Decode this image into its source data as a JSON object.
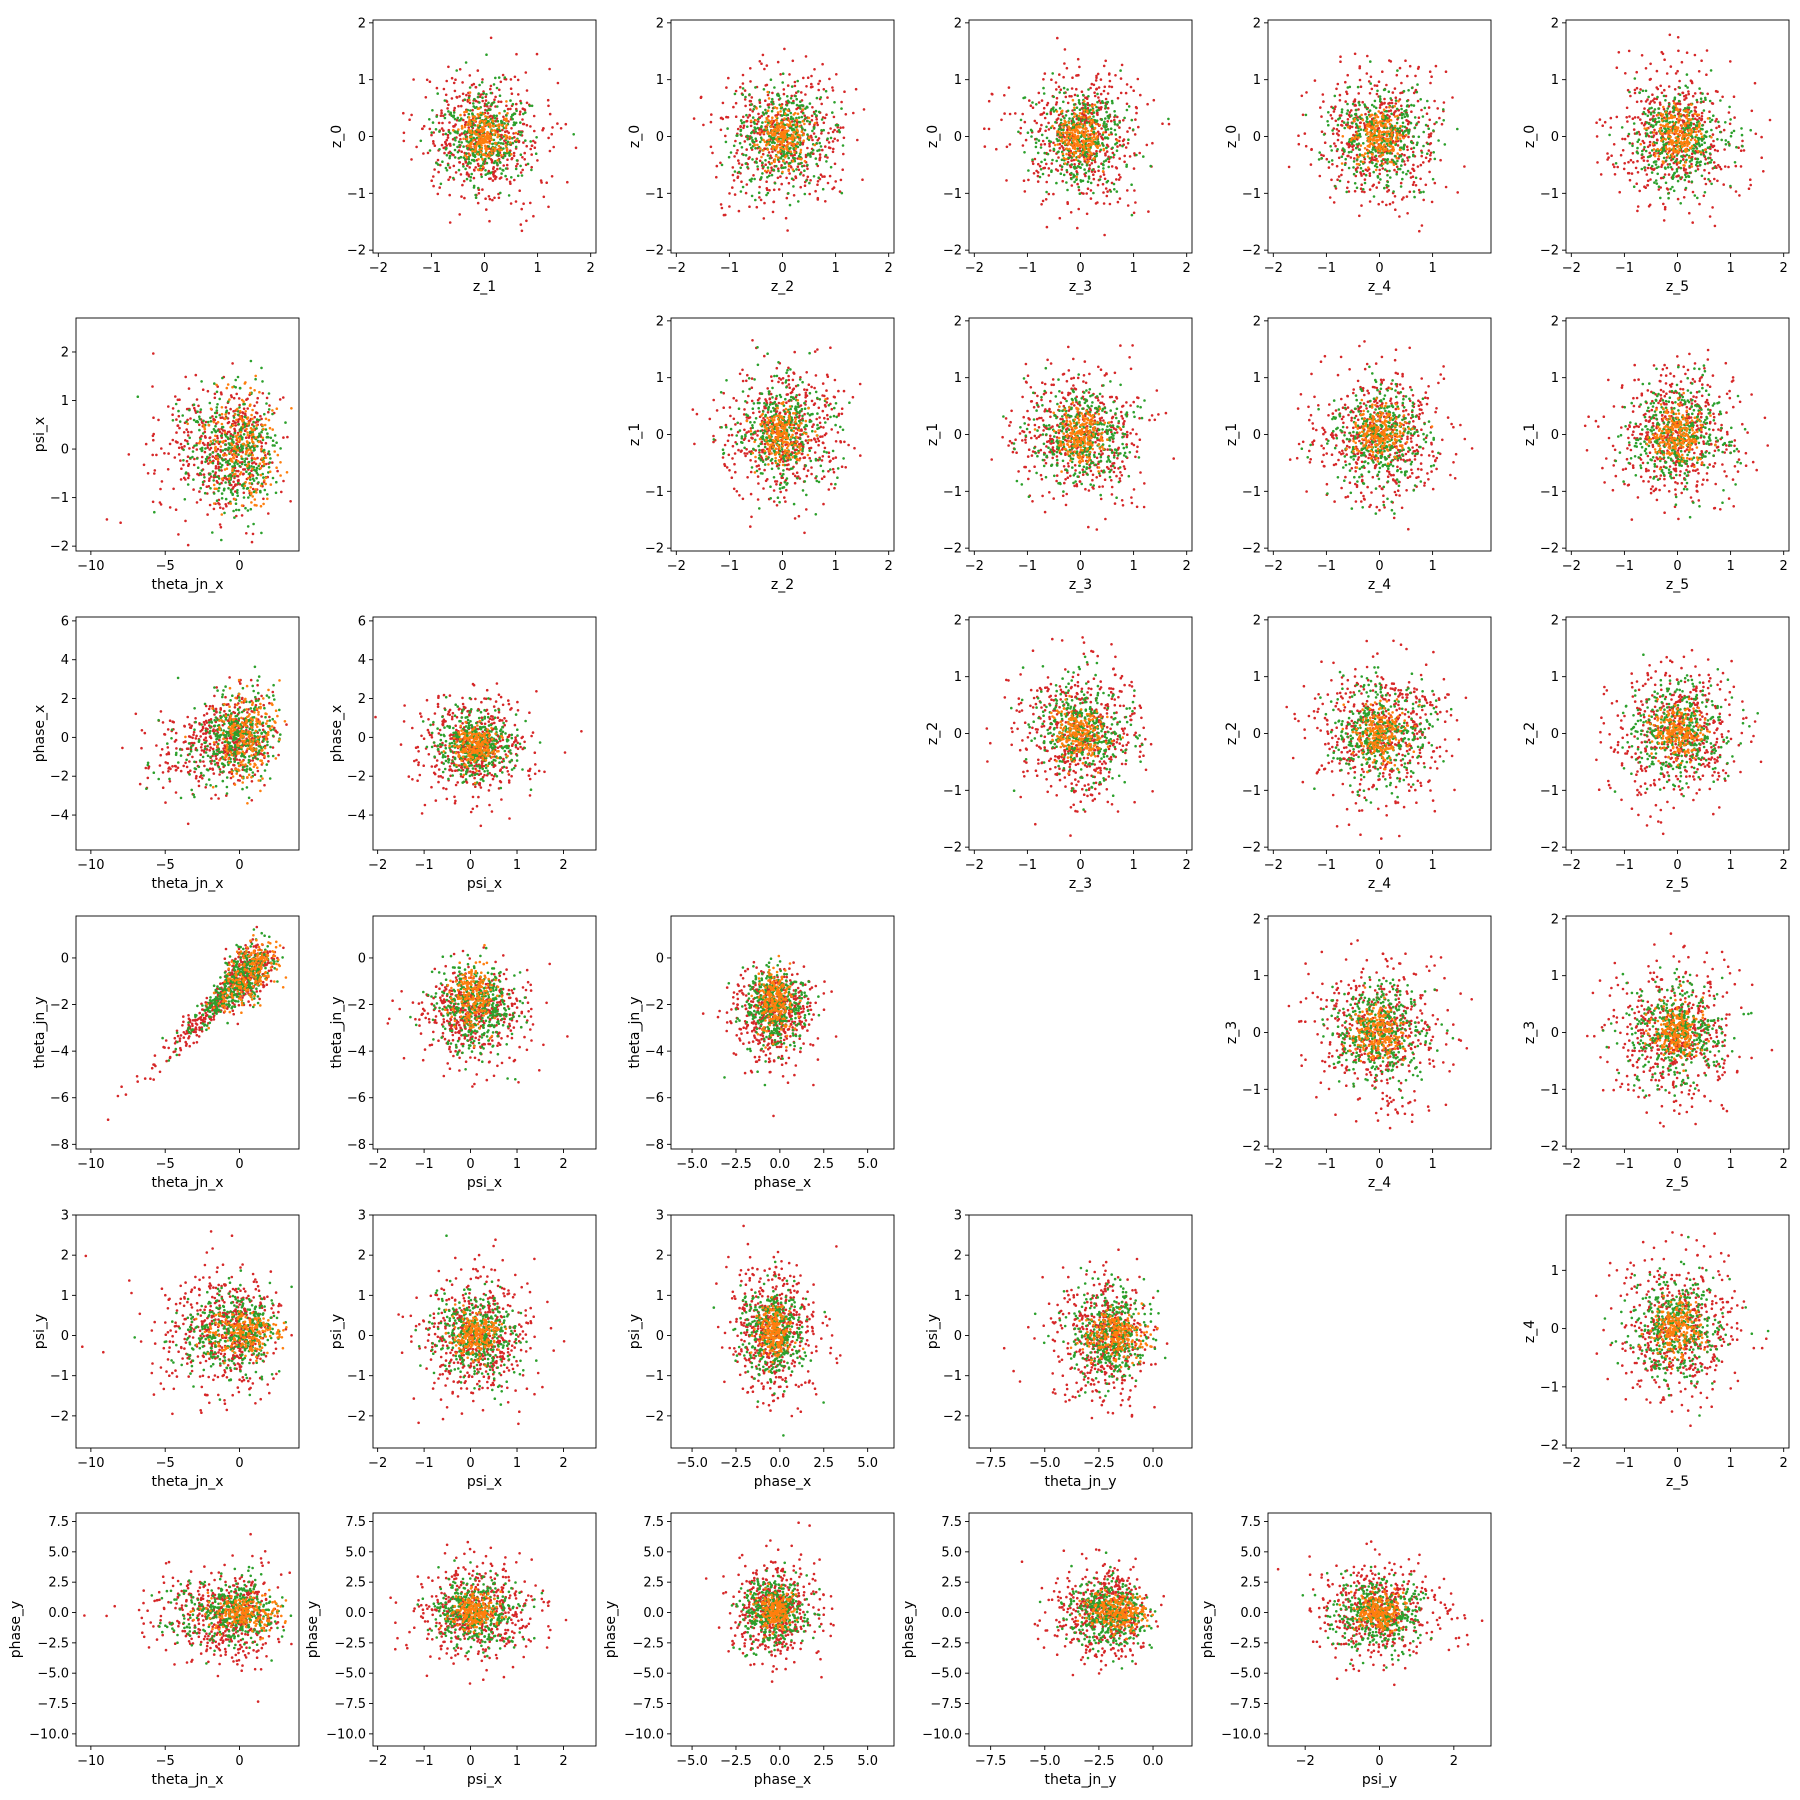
{
  "figure": {
    "title": ""
  },
  "colors": {
    "a": "#2ca02c",
    "b": "#ff7f0e",
    "c": "#d62728"
  },
  "chart_data": [
    {
      "type": "scatter",
      "row": 0,
      "col": 1,
      "xlabel": "z_1",
      "ylabel": "z_0",
      "xlim": [
        -2.1,
        2.1
      ],
      "ylim": [
        -2.05,
        2.05
      ],
      "xticks": [
        -2,
        -1,
        0,
        1,
        2
      ],
      "yticks": [
        -2,
        -1,
        0,
        1,
        2
      ],
      "points": "blob"
    },
    {
      "type": "scatter",
      "row": 0,
      "col": 2,
      "xlabel": "z_2",
      "ylabel": "z_0",
      "xlim": [
        -2.1,
        2.1
      ],
      "ylim": [
        -2.05,
        2.05
      ],
      "xticks": [
        -2,
        -1,
        0,
        1,
        2
      ],
      "yticks": [
        -2,
        -1,
        0,
        1,
        2
      ],
      "points": "blob"
    },
    {
      "type": "scatter",
      "row": 0,
      "col": 3,
      "xlabel": "z_3",
      "ylabel": "z_0",
      "xlim": [
        -2.1,
        2.1
      ],
      "ylim": [
        -2.05,
        2.05
      ],
      "xticks": [
        -2,
        -1,
        0,
        1,
        2
      ],
      "yticks": [
        -2,
        -1,
        0,
        1,
        2
      ],
      "points": "blob"
    },
    {
      "type": "scatter",
      "row": 0,
      "col": 4,
      "xlabel": "z_4",
      "ylabel": "z_0",
      "xlim": [
        -2.1,
        2.1
      ],
      "ylim": [
        -2.05,
        2.05
      ],
      "xticks": [
        -2,
        -1,
        0,
        1
      ],
      "yticks": [
        -2,
        -1,
        0,
        1,
        2
      ],
      "points": "blob"
    },
    {
      "type": "scatter",
      "row": 0,
      "col": 5,
      "xlabel": "z_5",
      "ylabel": "z_0",
      "xlim": [
        -2.1,
        2.1
      ],
      "ylim": [
        -2.05,
        2.05
      ],
      "xticks": [
        -2,
        -1,
        0,
        1,
        2
      ],
      "yticks": [
        -2,
        -1,
        0,
        1,
        2
      ],
      "points": "blob"
    },
    {
      "type": "scatter",
      "row": 1,
      "col": 0,
      "xlabel": "theta_jn_x",
      "ylabel": "psi_x",
      "xlim": [
        -11,
        4
      ],
      "ylim": [
        -2.1,
        2.7
      ],
      "xticks": [
        -10,
        -5,
        0
      ],
      "yticks": [
        -2,
        -1,
        0,
        1,
        2
      ],
      "points": "theta_psi"
    },
    {
      "type": "scatter",
      "row": 1,
      "col": 2,
      "xlabel": "z_2",
      "ylabel": "z_1",
      "xlim": [
        -2.1,
        2.1
      ],
      "ylim": [
        -2.05,
        2.05
      ],
      "xticks": [
        -2,
        -1,
        0,
        1,
        2
      ],
      "yticks": [
        -2,
        -1,
        0,
        1,
        2
      ],
      "points": "blob"
    },
    {
      "type": "scatter",
      "row": 1,
      "col": 3,
      "xlabel": "z_3",
      "ylabel": "z_1",
      "xlim": [
        -2.1,
        2.1
      ],
      "ylim": [
        -2.05,
        2.05
      ],
      "xticks": [
        -2,
        -1,
        0,
        1,
        2
      ],
      "yticks": [
        -2,
        -1,
        0,
        1,
        2
      ],
      "points": "blob"
    },
    {
      "type": "scatter",
      "row": 1,
      "col": 4,
      "xlabel": "z_4",
      "ylabel": "z_1",
      "xlim": [
        -2.1,
        2.1
      ],
      "ylim": [
        -2.05,
        2.05
      ],
      "xticks": [
        -2,
        -1,
        0,
        1
      ],
      "yticks": [
        -2,
        -1,
        0,
        1,
        2
      ],
      "points": "blob"
    },
    {
      "type": "scatter",
      "row": 1,
      "col": 5,
      "xlabel": "z_5",
      "ylabel": "z_1",
      "xlim": [
        -2.1,
        2.1
      ],
      "ylim": [
        -2.05,
        2.05
      ],
      "xticks": [
        -2,
        -1,
        0,
        1,
        2
      ],
      "yticks": [
        -2,
        -1,
        0,
        1,
        2
      ],
      "points": "blob"
    },
    {
      "type": "scatter",
      "row": 2,
      "col": 0,
      "xlabel": "theta_jn_x",
      "ylabel": "phase_x",
      "xlim": [
        -11,
        4
      ],
      "ylim": [
        -5.8,
        6.2
      ],
      "xticks": [
        -10,
        -5,
        0
      ],
      "yticks": [
        -4,
        -2,
        0,
        2,
        4,
        6
      ],
      "points": "theta_phase"
    },
    {
      "type": "scatter",
      "row": 2,
      "col": 1,
      "xlabel": "psi_x",
      "ylabel": "phase_x",
      "xlim": [
        -2.1,
        2.7
      ],
      "ylim": [
        -5.8,
        6.2
      ],
      "xticks": [
        -2,
        -1,
        0,
        1,
        2
      ],
      "yticks": [
        -4,
        -2,
        0,
        2,
        4,
        6
      ],
      "points": "psi_phase"
    },
    {
      "type": "scatter",
      "row": 2,
      "col": 3,
      "xlabel": "z_3",
      "ylabel": "z_2",
      "xlim": [
        -2.1,
        2.1
      ],
      "ylim": [
        -2.05,
        2.05
      ],
      "xticks": [
        -2,
        -1,
        0,
        1,
        2
      ],
      "yticks": [
        -2,
        -1,
        0,
        1,
        2
      ],
      "points": "blob"
    },
    {
      "type": "scatter",
      "row": 2,
      "col": 4,
      "xlabel": "z_4",
      "ylabel": "z_2",
      "xlim": [
        -2.1,
        2.1
      ],
      "ylim": [
        -2.05,
        2.05
      ],
      "xticks": [
        -2,
        -1,
        0,
        1
      ],
      "yticks": [
        -2,
        -1,
        0,
        1,
        2
      ],
      "points": "blob"
    },
    {
      "type": "scatter",
      "row": 2,
      "col": 5,
      "xlabel": "z_5",
      "ylabel": "z_2",
      "xlim": [
        -2.1,
        2.1
      ],
      "ylim": [
        -2.05,
        2.05
      ],
      "xticks": [
        -2,
        -1,
        0,
        1,
        2
      ],
      "yticks": [
        -2,
        -1,
        0,
        1,
        2
      ],
      "points": "blob"
    },
    {
      "type": "scatter",
      "row": 3,
      "col": 0,
      "xlabel": "theta_jn_x",
      "ylabel": "theta_jn_y",
      "xlim": [
        -11,
        4
      ],
      "ylim": [
        -8.2,
        1.8
      ],
      "xticks": [
        -10,
        -5,
        0
      ],
      "yticks": [
        -8,
        -6,
        -4,
        -2,
        0
      ],
      "points": "theta_theta"
    },
    {
      "type": "scatter",
      "row": 3,
      "col": 1,
      "xlabel": "psi_x",
      "ylabel": "theta_jn_y",
      "xlim": [
        -2.1,
        2.7
      ],
      "ylim": [
        -8.2,
        1.8
      ],
      "xticks": [
        -2,
        -1,
        0,
        1,
        2
      ],
      "yticks": [
        -8,
        -6,
        -4,
        -2,
        0
      ],
      "points": "psi_thetay"
    },
    {
      "type": "scatter",
      "row": 3,
      "col": 2,
      "xlabel": "phase_x",
      "ylabel": "theta_jn_y",
      "xlim": [
        -6.2,
        6.5
      ],
      "ylim": [
        -8.2,
        1.8
      ],
      "xticks": [
        -5.0,
        -2.5,
        0.0,
        2.5,
        5.0
      ],
      "yticks": [
        -8,
        -6,
        -4,
        -2,
        0
      ],
      "points": "phase_thetay"
    },
    {
      "type": "scatter",
      "row": 3,
      "col": 4,
      "xlabel": "z_4",
      "ylabel": "z_3",
      "xlim": [
        -2.1,
        2.1
      ],
      "ylim": [
        -2.05,
        2.05
      ],
      "xticks": [
        -2,
        -1,
        0,
        1
      ],
      "yticks": [
        -2,
        -1,
        0,
        1,
        2
      ],
      "points": "blob"
    },
    {
      "type": "scatter",
      "row": 3,
      "col": 5,
      "xlabel": "z_5",
      "ylabel": "z_3",
      "xlim": [
        -2.1,
        2.1
      ],
      "ylim": [
        -2.05,
        2.05
      ],
      "xticks": [
        -2,
        -1,
        0,
        1,
        2
      ],
      "yticks": [
        -2,
        -1,
        0,
        1,
        2
      ],
      "points": "blob"
    },
    {
      "type": "scatter",
      "row": 4,
      "col": 0,
      "xlabel": "theta_jn_x",
      "ylabel": "psi_y",
      "xlim": [
        -11,
        4
      ],
      "ylim": [
        -2.8,
        3.0
      ],
      "xticks": [
        -10,
        -5,
        0
      ],
      "yticks": [
        -2,
        -1,
        0,
        1,
        2,
        3
      ],
      "points": "theta_psiy"
    },
    {
      "type": "scatter",
      "row": 4,
      "col": 1,
      "xlabel": "psi_x",
      "ylabel": "psi_y",
      "xlim": [
        -2.1,
        2.7
      ],
      "ylim": [
        -2.8,
        3.0
      ],
      "xticks": [
        -2,
        -1,
        0,
        1,
        2
      ],
      "yticks": [
        -2,
        -1,
        0,
        1,
        2,
        3
      ],
      "points": "psi_psiy"
    },
    {
      "type": "scatter",
      "row": 4,
      "col": 2,
      "xlabel": "phase_x",
      "ylabel": "psi_y",
      "xlim": [
        -6.2,
        6.5
      ],
      "ylim": [
        -2.8,
        3.0
      ],
      "xticks": [
        -5.0,
        -2.5,
        0.0,
        2.5,
        5.0
      ],
      "yticks": [
        -2,
        -1,
        0,
        1,
        2,
        3
      ],
      "points": "phase_psiy"
    },
    {
      "type": "scatter",
      "row": 4,
      "col": 3,
      "xlabel": "theta_jn_y",
      "ylabel": "psi_y",
      "xlim": [
        -8.5,
        1.8
      ],
      "ylim": [
        -2.8,
        3.0
      ],
      "xticks": [
        -7.5,
        -5.0,
        -2.5,
        0.0
      ],
      "yticks": [
        -2,
        -1,
        0,
        1,
        2,
        3
      ],
      "points": "thetay_psiy"
    },
    {
      "type": "scatter",
      "row": 4,
      "col": 5,
      "xlabel": "z_5",
      "ylabel": "z_4",
      "xlim": [
        -2.1,
        2.1
      ],
      "ylim": [
        -2.05,
        1.95
      ],
      "xticks": [
        -2,
        -1,
        0,
        1,
        2
      ],
      "yticks": [
        -2,
        -1,
        0,
        1
      ],
      "points": "blob"
    },
    {
      "type": "scatter",
      "row": 5,
      "col": 0,
      "xlabel": "theta_jn_x",
      "ylabel": "phase_y",
      "xlim": [
        -11,
        4
      ],
      "ylim": [
        -11.0,
        8.2
      ],
      "xticks": [
        -10,
        -5,
        0
      ],
      "yticks": [
        -10.0,
        -7.5,
        -5.0,
        -2.5,
        0.0,
        2.5,
        5.0,
        7.5
      ],
      "points": "theta_phasey"
    },
    {
      "type": "scatter",
      "row": 5,
      "col": 1,
      "xlabel": "psi_x",
      "ylabel": "phase_y",
      "xlim": [
        -2.1,
        2.7
      ],
      "ylim": [
        -11.0,
        8.2
      ],
      "xticks": [
        -2,
        -1,
        0,
        1,
        2
      ],
      "yticks": [
        -10.0,
        -7.5,
        -5.0,
        -2.5,
        0.0,
        2.5,
        5.0,
        7.5
      ],
      "points": "psi_phasey"
    },
    {
      "type": "scatter",
      "row": 5,
      "col": 2,
      "xlabel": "phase_x",
      "ylabel": "phase_y",
      "xlim": [
        -6.2,
        6.5
      ],
      "ylim": [
        -11.0,
        8.2
      ],
      "xticks": [
        -5.0,
        -2.5,
        0.0,
        2.5,
        5.0
      ],
      "yticks": [
        -10.0,
        -7.5,
        -5.0,
        -2.5,
        0.0,
        2.5,
        5.0,
        7.5
      ],
      "points": "phase_phasey"
    },
    {
      "type": "scatter",
      "row": 5,
      "col": 3,
      "xlabel": "theta_jn_y",
      "ylabel": "phase_y",
      "xlim": [
        -8.5,
        1.8
      ],
      "ylim": [
        -11.0,
        8.2
      ],
      "xticks": [
        -7.5,
        -5.0,
        -2.5,
        0.0
      ],
      "yticks": [
        -10.0,
        -7.5,
        -5.0,
        -2.5,
        0.0,
        2.5,
        5.0,
        7.5
      ],
      "points": "thetay_phasey"
    },
    {
      "type": "scatter",
      "row": 5,
      "col": 4,
      "xlabel": "psi_y",
      "ylabel": "phase_y",
      "xlim": [
        -3.0,
        3.0
      ],
      "ylim": [
        -11.0,
        8.2
      ],
      "xticks": [
        -2,
        0,
        2
      ],
      "yticks": [
        -10.0,
        -7.5,
        -5.0,
        -2.5,
        0.0,
        2.5,
        5.0,
        7.5
      ],
      "points": "psiy_phasey"
    }
  ]
}
